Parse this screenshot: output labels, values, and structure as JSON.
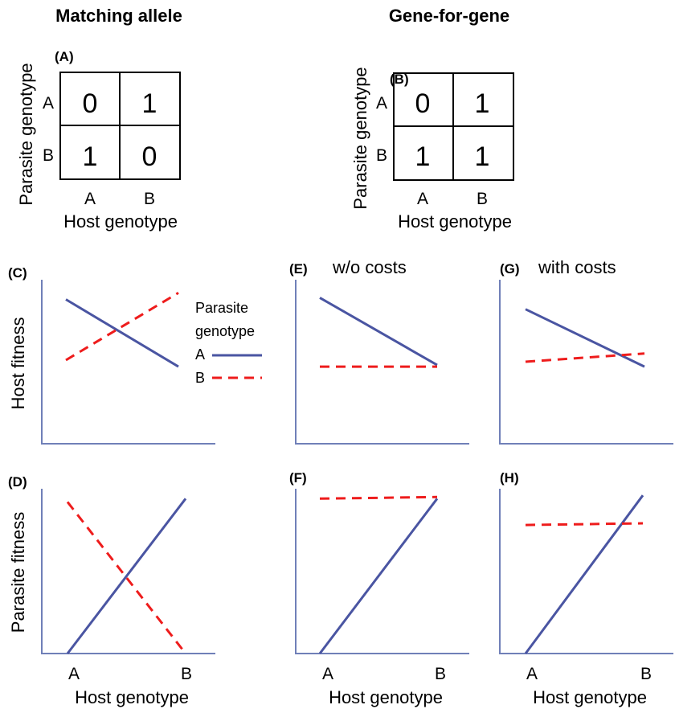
{
  "titles": {
    "matching": "Matching allele",
    "gene_for_gene": "Gene-for-gene"
  },
  "matrices": {
    "A": {
      "panel_label": "(A)",
      "y_label": "Parasite genotype",
      "x_label": "Host genotype",
      "row_labels": [
        "A",
        "B"
      ],
      "col_labels": [
        "A",
        "B"
      ],
      "cells": [
        [
          "0",
          "1"
        ],
        [
          "1",
          "0"
        ]
      ]
    },
    "B": {
      "panel_label": "(B)",
      "y_label": "Parasite genotype",
      "x_label": "Host genotype",
      "row_labels": [
        "A",
        "B"
      ],
      "col_labels": [
        "A",
        "B"
      ],
      "cells": [
        [
          "0",
          "1"
        ],
        [
          "1",
          "1"
        ]
      ]
    }
  },
  "legend": {
    "title_line1": "Parasite",
    "title_line2": "genotype",
    "entries": [
      "A",
      "B"
    ]
  },
  "axis_labels": {
    "host_fitness": "Host fitness",
    "parasite_fitness": "Parasite fitness",
    "host_genotype": "Host genotype",
    "tick_a": "A",
    "tick_b": "B"
  },
  "colors": {
    "solid_line": "#4a55a2",
    "dashed_line": "#ee1c1c",
    "axis": "#7080b8"
  },
  "chart_data": [
    {
      "type": "line",
      "panel": "(C)",
      "subtitle": "",
      "ylabel": "Host fitness",
      "xlabel": "",
      "categories": [
        "A",
        "B"
      ],
      "ylim": [
        0,
        1
      ],
      "series": [
        {
          "name": "A",
          "style": "solid",
          "values": [
            0.88,
            0.47
          ]
        },
        {
          "name": "B",
          "style": "dashed",
          "values": [
            0.51,
            0.92
          ]
        }
      ]
    },
    {
      "type": "line",
      "panel": "(E)",
      "subtitle": "w/o costs",
      "ylabel": "",
      "xlabel": "",
      "categories": [
        "A",
        "B"
      ],
      "ylim": [
        0,
        1
      ],
      "series": [
        {
          "name": "A",
          "style": "solid",
          "values": [
            0.89,
            0.48
          ]
        },
        {
          "name": "B",
          "style": "dashed",
          "values": [
            0.47,
            0.47
          ]
        }
      ]
    },
    {
      "type": "line",
      "panel": "(G)",
      "subtitle": "with costs",
      "ylabel": "",
      "xlabel": "",
      "categories": [
        "A",
        "B"
      ],
      "ylim": [
        0,
        1
      ],
      "series": [
        {
          "name": "A",
          "style": "solid",
          "values": [
            0.82,
            0.47
          ]
        },
        {
          "name": "B",
          "style": "dashed",
          "values": [
            0.5,
            0.55
          ]
        }
      ]
    },
    {
      "type": "line",
      "panel": "(D)",
      "subtitle": "",
      "ylabel": "Parasite fitness",
      "xlabel": "Host genotype",
      "categories": [
        "A",
        "B"
      ],
      "ylim": [
        0,
        1
      ],
      "series": [
        {
          "name": "A",
          "style": "solid",
          "values": [
            0.0,
            0.94
          ]
        },
        {
          "name": "B",
          "style": "dashed",
          "values": [
            0.92,
            0.0
          ]
        }
      ]
    },
    {
      "type": "line",
      "panel": "(F)",
      "subtitle": "",
      "ylabel": "",
      "xlabel": "Host genotype",
      "categories": [
        "A",
        "B"
      ],
      "ylim": [
        0,
        1
      ],
      "series": [
        {
          "name": "A",
          "style": "solid",
          "values": [
            0.0,
            0.94
          ]
        },
        {
          "name": "B",
          "style": "dashed",
          "values": [
            0.94,
            0.95
          ]
        }
      ]
    },
    {
      "type": "line",
      "panel": "(H)",
      "subtitle": "",
      "ylabel": "",
      "xlabel": "Host genotype",
      "categories": [
        "A",
        "B"
      ],
      "ylim": [
        0,
        1
      ],
      "series": [
        {
          "name": "A",
          "style": "solid",
          "values": [
            0.0,
            0.96
          ]
        },
        {
          "name": "B",
          "style": "dashed",
          "values": [
            0.78,
            0.79
          ]
        }
      ]
    }
  ]
}
